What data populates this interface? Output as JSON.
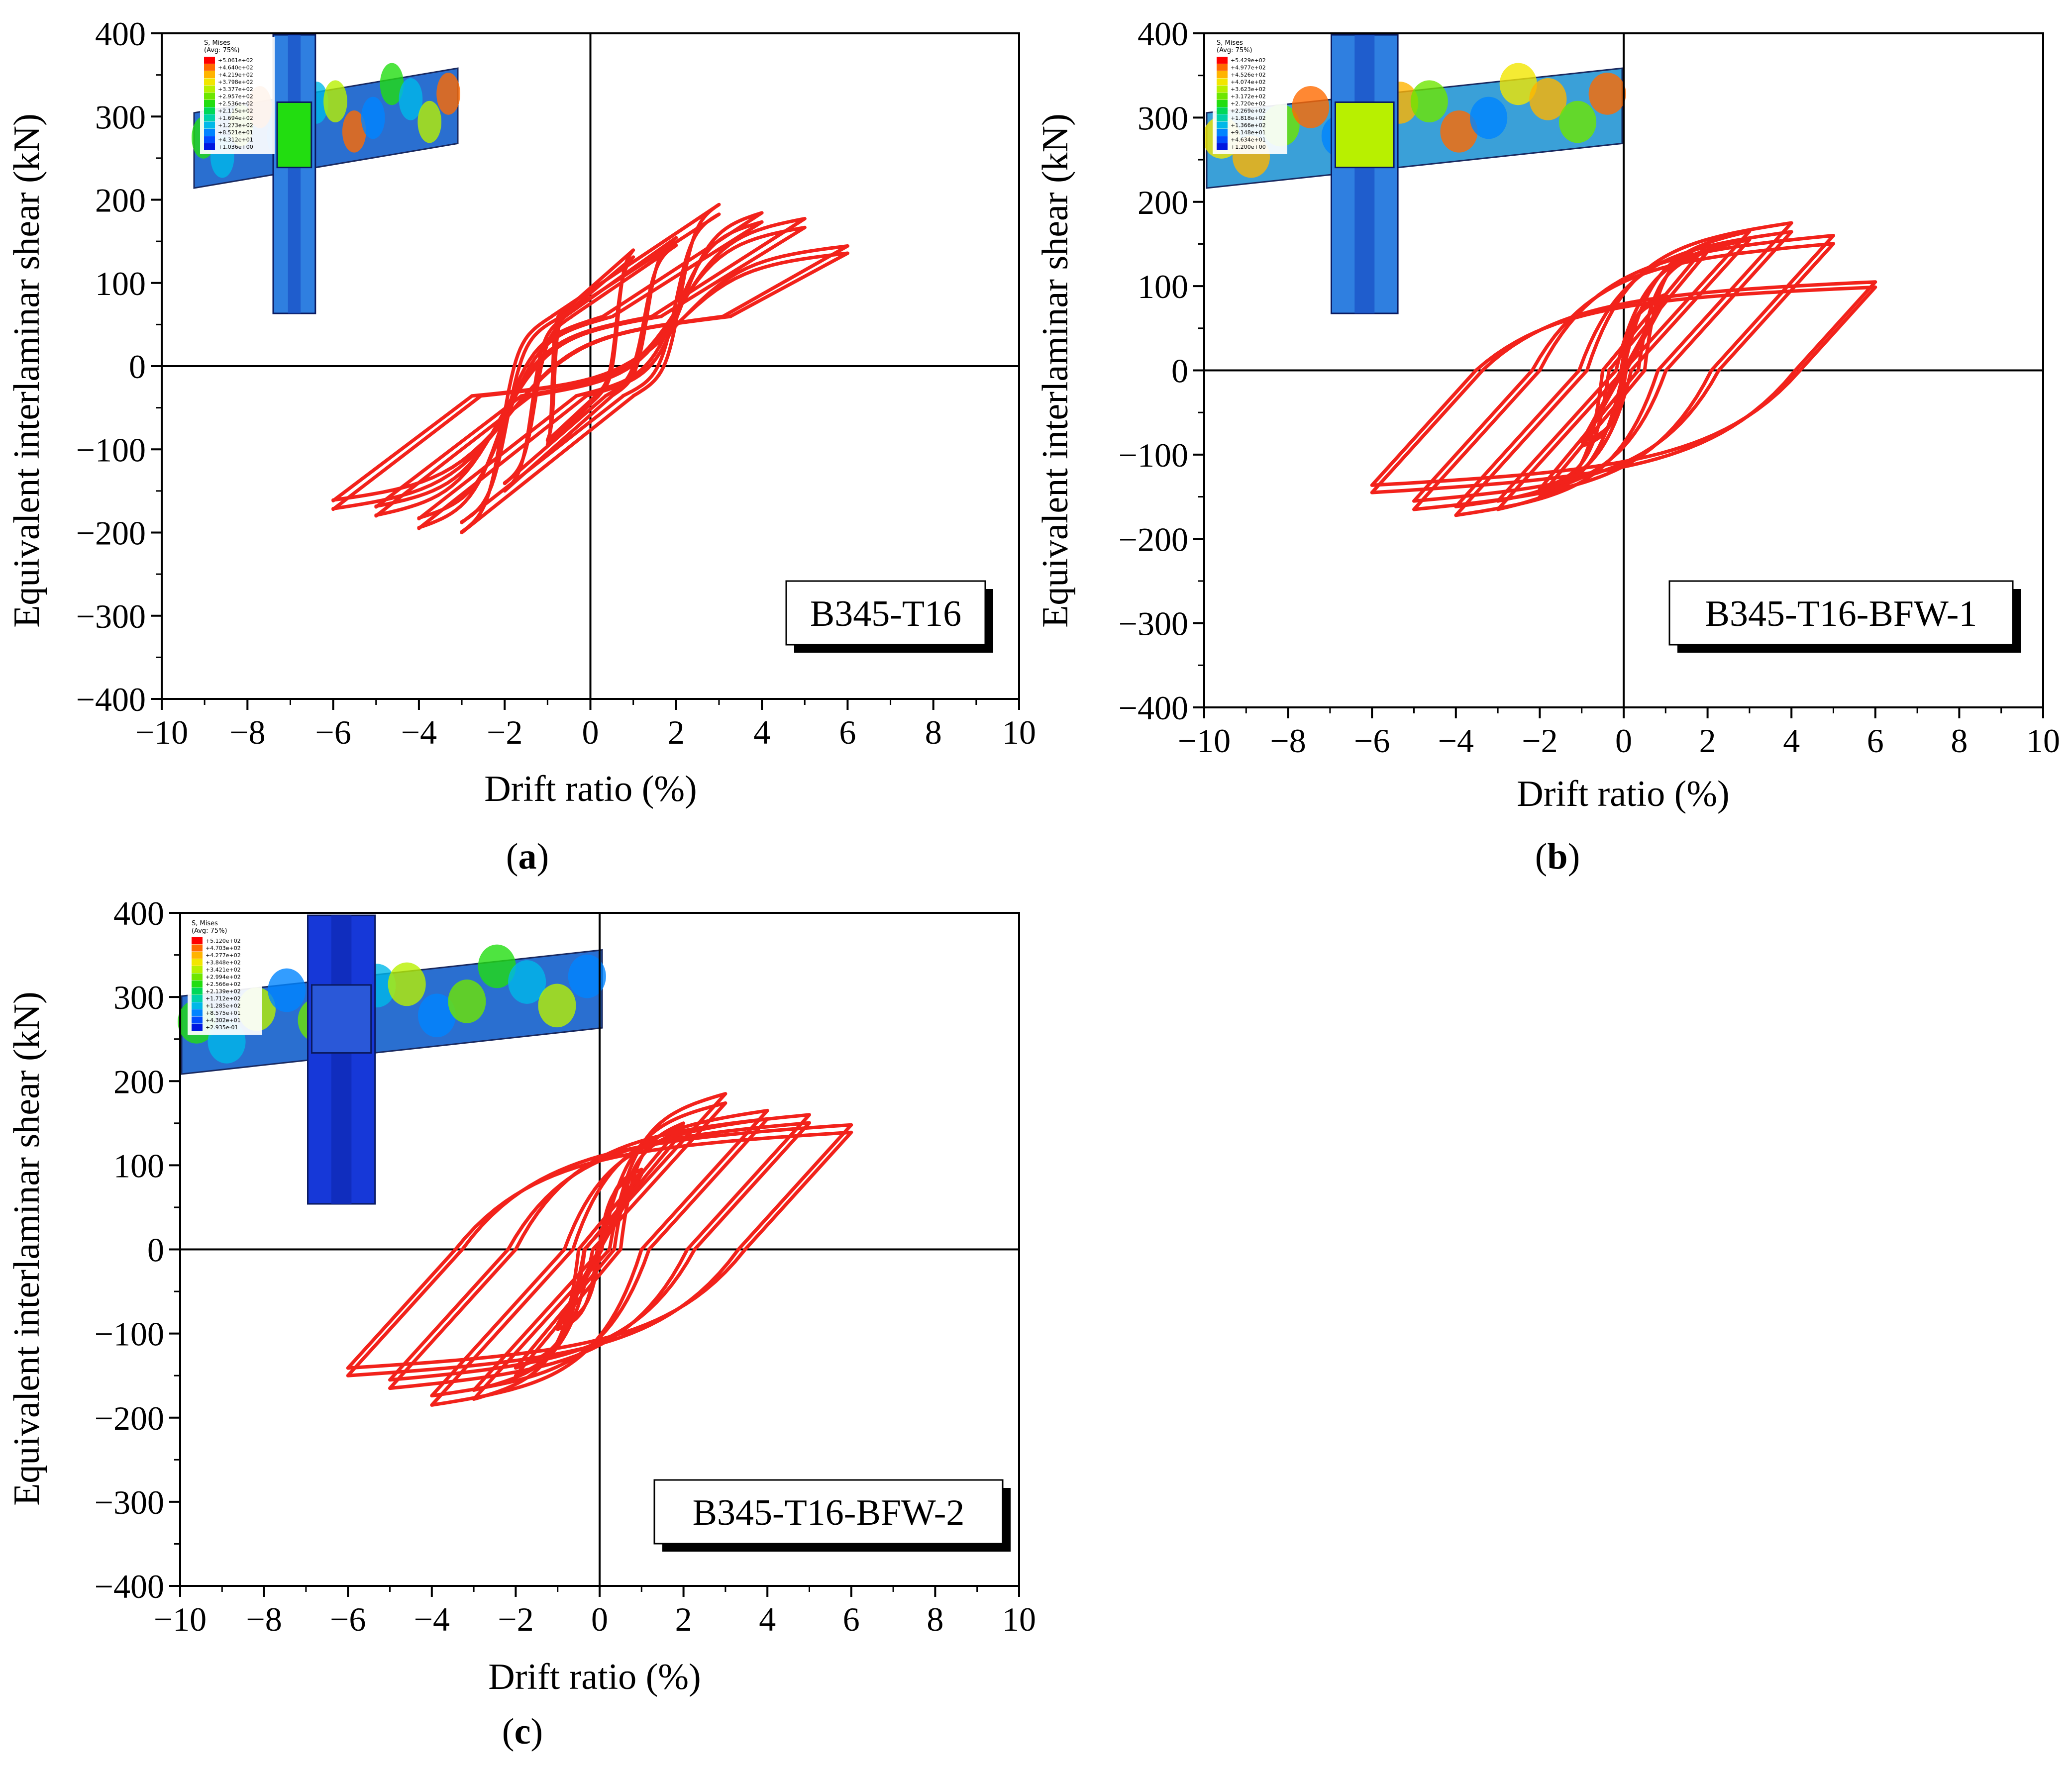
{
  "colors": {
    "curve": "#f2221b",
    "axis": "#000000",
    "legend_box_shadow": "#000000"
  },
  "legend_scale_colors": [
    "#ff0000",
    "#ff6a00",
    "#ffb400",
    "#f2e600",
    "#b8f000",
    "#6ee600",
    "#22dd10",
    "#00d858",
    "#00d2a8",
    "#00b8e8",
    "#0084ff",
    "#004cff",
    "#0018e0"
  ],
  "chart_data": [
    {
      "id": "a",
      "type": "line",
      "subtitle": "(a)",
      "specimen_label": "B345-T16",
      "xlabel": "Drift ratio (%)",
      "ylabel": "Equivalent interlaminar shear  (kN)",
      "xlim": [
        -10,
        10
      ],
      "ylim": [
        -400,
        400
      ],
      "xticks": [
        "−10",
        "−8",
        "−6",
        "−4",
        "−2",
        "0",
        "2",
        "4",
        "6",
        "8",
        "10"
      ],
      "yticks": [
        "400",
        "300",
        "200",
        "100",
        "0",
        "−100",
        "−200",
        "−300",
        "−400"
      ],
      "grid": false,
      "fe_inset": {
        "legend_title": [
          "S, Mises",
          "(Avg: 75%)"
        ],
        "legend_values": [
          "+5.061e+02",
          "+4.640e+02",
          "+4.219e+02",
          "+3.798e+02",
          "+3.377e+02",
          "+2.957e+02",
          "+2.536e+02",
          "+2.115e+02",
          "+1.694e+02",
          "+1.273e+02",
          "+8.521e+01",
          "+4.312e+01",
          "+1.036e+00"
        ]
      },
      "series": [
        {
          "name": "hysteresis",
          "cycles": [
            {
              "dmax": 1,
              "pmax": 140,
              "pmin": -95,
              "k": 80
            },
            {
              "dmax": 2,
              "pmax": 155,
              "pmin": -150,
              "k": 60
            },
            {
              "dmax": 3,
              "pmax": 195,
              "pmin": -200,
              "k": 50
            },
            {
              "dmax": 4,
              "pmax": 185,
              "pmin": -195,
              "k": 50
            },
            {
              "dmax": 5,
              "pmax": 178,
              "pmin": -180,
              "k": 50
            },
            {
              "dmax": 6,
              "pmax": 145,
              "pmin": -172,
              "k": 50
            }
          ],
          "pinched": true,
          "p_cross": 60
        }
      ]
    },
    {
      "id": "b",
      "type": "line",
      "subtitle": "(b)",
      "specimen_label": "B345-T16-BFW-1",
      "xlabel": "Drift ratio (%)",
      "ylabel": "Equivalent interlaminar shear  (kN)",
      "xlim": [
        -10,
        10
      ],
      "ylim": [
        -400,
        400
      ],
      "xticks": [
        "−10",
        "−8",
        "−6",
        "−4",
        "−2",
        "0",
        "2",
        "4",
        "6",
        "8",
        "10"
      ],
      "yticks": [
        "400",
        "300",
        "200",
        "100",
        "0",
        "−100",
        "−200",
        "−300",
        "−400"
      ],
      "grid": false,
      "fe_inset": {
        "legend_title": [
          "S, Mises",
          "(Avg: 75%)"
        ],
        "legend_values": [
          "+5.429e+02",
          "+4.977e+02",
          "+4.526e+02",
          "+4.074e+02",
          "+3.623e+02",
          "+3.172e+02",
          "+2.720e+02",
          "+2.269e+02",
          "+1.818e+02",
          "+1.366e+02",
          "+9.148e+01",
          "+4.634e+01",
          "+1.200e+00"
        ]
      },
      "series": [
        {
          "name": "hysteresis",
          "cycles": [
            {
              "dmax": 1,
              "pmax": 90,
              "pmin": -90,
              "k": 90
            },
            {
              "dmax": 2,
              "pmax": 150,
              "pmin": -150,
              "k": 60
            },
            {
              "dmax": 3,
              "pmax": 165,
              "pmin": -165,
              "k": 55
            },
            {
              "dmax": 4,
              "pmax": 175,
              "pmin": -172,
              "k": 55
            },
            {
              "dmax": 5,
              "pmax": 160,
              "pmin": -165,
              "k": 55
            },
            {
              "dmax": 6,
              "pmax": 105,
              "pmin": -145,
              "k": 55
            }
          ],
          "pinched": false
        }
      ]
    },
    {
      "id": "c",
      "type": "line",
      "subtitle": "(c)",
      "specimen_label": "B345-T16-BFW-2",
      "xlabel": "Drift ratio (%)",
      "ylabel": "Equivalent interlaminar shear  (kN)",
      "xlim": [
        -10,
        10
      ],
      "ylim": [
        -400,
        400
      ],
      "xticks": [
        "−10",
        "−8",
        "−6",
        "−4",
        "−2",
        "0",
        "2",
        "4",
        "6",
        "8",
        "10"
      ],
      "yticks": [
        "400",
        "300",
        "200",
        "100",
        "0",
        "−100",
        "−200",
        "−300",
        "−400"
      ],
      "grid": false,
      "fe_inset": {
        "legend_title": [
          "S, Mises",
          "(Avg: 75%)"
        ],
        "legend_values": [
          "+5.120e+02",
          "+4.703e+02",
          "+4.277e+02",
          "+3.848e+02",
          "+3.421e+02",
          "+2.994e+02",
          "+2.566e+02",
          "+2.139e+02",
          "+1.712e+02",
          "+1.285e+02",
          "+8.575e+01",
          "+4.302e+01",
          "+2.935e-01"
        ]
      },
      "series": [
        {
          "name": "hysteresis",
          "cycles": [
            {
              "dmax": 1,
              "pmax": 95,
              "pmin": -95,
              "k": 90
            },
            {
              "dmax": 2,
              "pmax": 150,
              "pmin": -150,
              "k": 60
            },
            {
              "dmax": 3,
              "pmax": 185,
              "pmin": -178,
              "k": 55
            },
            {
              "dmax": 4,
              "pmax": 165,
              "pmin": -185,
              "k": 55
            },
            {
              "dmax": 5,
              "pmax": 160,
              "pmin": -165,
              "k": 55
            },
            {
              "dmax": 6,
              "pmax": 148,
              "pmin": -150,
              "k": 55
            }
          ],
          "pinched": false
        }
      ]
    }
  ]
}
